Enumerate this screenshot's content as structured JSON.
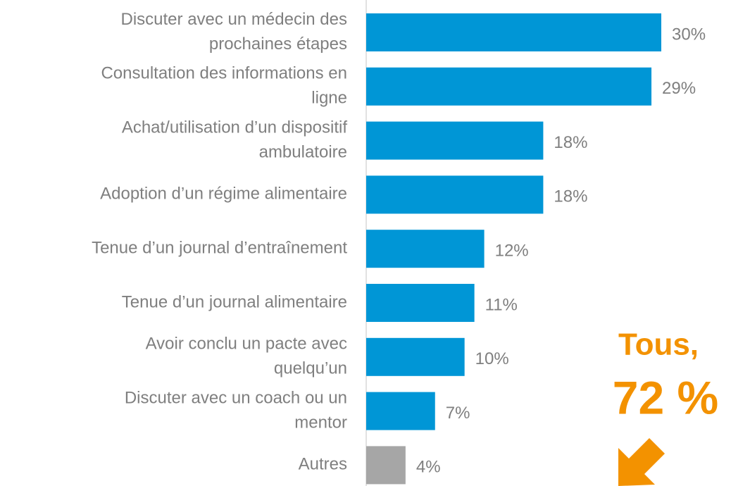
{
  "chart_data": {
    "type": "bar",
    "orientation": "horizontal",
    "categories": [
      [
        "Discuter avec un médecin des",
        "prochaines étapes"
      ],
      [
        "Consultation des informations en",
        "ligne"
      ],
      [
        "Achat/utilisation d’un dispositif",
        "ambulatoire"
      ],
      [
        "Adoption d’un régime alimentaire"
      ],
      [
        "Tenue d’un journal d’entraînement"
      ],
      [
        "Tenue d’un journal alimentaire"
      ],
      [
        "Avoir conclu un pacte avec",
        "quelqu’un"
      ],
      [
        "Discuter avec un coach ou un",
        "mentor"
      ],
      [
        "Autres"
      ]
    ],
    "values": [
      30,
      29,
      18,
      18,
      12,
      11,
      10,
      7,
      4
    ],
    "value_labels": [
      "30%",
      "29%",
      "18%",
      "18%",
      "12%",
      "11%",
      "10%",
      "7%",
      "4%"
    ],
    "colors": [
      "#0096d6",
      "#0096d6",
      "#0096d6",
      "#0096d6",
      "#0096d6",
      "#0096d6",
      "#0096d6",
      "#0096d6",
      "#a6a6a6"
    ],
    "xlim": [
      0,
      30
    ],
    "annotations": [
      "Tous,",
      "72 %"
    ],
    "annotation_color": "#f39200"
  }
}
